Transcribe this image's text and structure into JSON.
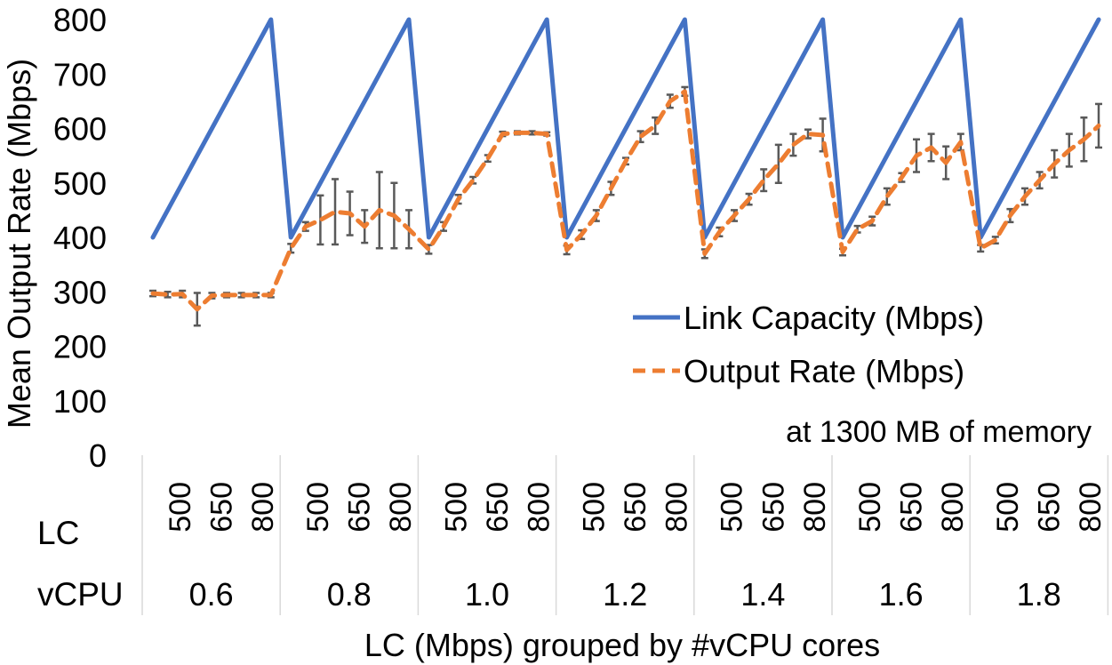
{
  "chart_data": {
    "type": "line",
    "ylabel": "Mean Output Rate (Mbps)",
    "xlabel": "LC (Mbps) grouped by #vCPU cores",
    "ylim": [
      0,
      800
    ],
    "yticks": [
      0,
      100,
      200,
      300,
      400,
      500,
      600,
      700,
      800
    ],
    "annotation": "at 1300 MB of memory",
    "row_labels": {
      "lc": "LC",
      "vcpu": "vCPU"
    },
    "lc_tick_labels": [
      "500",
      "650",
      "800"
    ],
    "vcpu_groups": [
      "0.6",
      "0.8",
      "1.0",
      "1.2",
      "1.4",
      "1.6",
      "1.8"
    ],
    "points_per_group": 9,
    "legend": {
      "position": "center-right",
      "entries": [
        "Link Capacity (Mbps)",
        "Output Rate (Mbps)"
      ]
    },
    "series": [
      {
        "name": "Link Capacity (Mbps)",
        "color": "#4472C4",
        "style": "solid",
        "values": [
          400,
          450,
          500,
          550,
          600,
          650,
          700,
          750,
          800,
          400,
          450,
          500,
          550,
          600,
          650,
          700,
          750,
          800,
          400,
          450,
          500,
          550,
          600,
          650,
          700,
          750,
          800,
          400,
          450,
          500,
          550,
          600,
          650,
          700,
          750,
          800,
          400,
          450,
          500,
          550,
          600,
          650,
          700,
          750,
          800,
          400,
          450,
          500,
          550,
          600,
          650,
          700,
          750,
          800,
          400,
          450,
          500,
          550,
          600,
          650,
          700,
          750,
          800
        ]
      },
      {
        "name": "Output Rate (Mbps)",
        "color": "#ED7D31",
        "style": "dashed",
        "values": [
          297,
          295,
          296,
          268,
          293,
          294,
          294,
          294,
          294,
          380,
          420,
          432,
          447,
          444,
          420,
          450,
          440,
          415,
          378,
          420,
          470,
          505,
          545,
          590,
          592,
          592,
          590,
          377,
          405,
          440,
          490,
          540,
          585,
          605,
          650,
          668,
          370,
          410,
          440,
          470,
          505,
          535,
          570,
          590,
          588,
          373,
          415,
          430,
          475,
          510,
          550,
          565,
          537,
          575,
          380,
          395,
          440,
          475,
          505,
          535,
          560,
          580,
          605
        ],
        "errors": [
          5,
          5,
          6,
          30,
          5,
          4,
          4,
          4,
          4,
          8,
          8,
          45,
          60,
          40,
          30,
          70,
          60,
          35,
          8,
          8,
          8,
          6,
          6,
          4,
          3,
          3,
          3,
          8,
          8,
          10,
          12,
          6,
          10,
          15,
          12,
          8,
          8,
          8,
          10,
          10,
          20,
          35,
          20,
          8,
          30,
          6,
          6,
          8,
          15,
          8,
          30,
          25,
          30,
          15,
          6,
          6,
          12,
          15,
          15,
          25,
          30,
          40,
          40
        ]
      }
    ]
  }
}
